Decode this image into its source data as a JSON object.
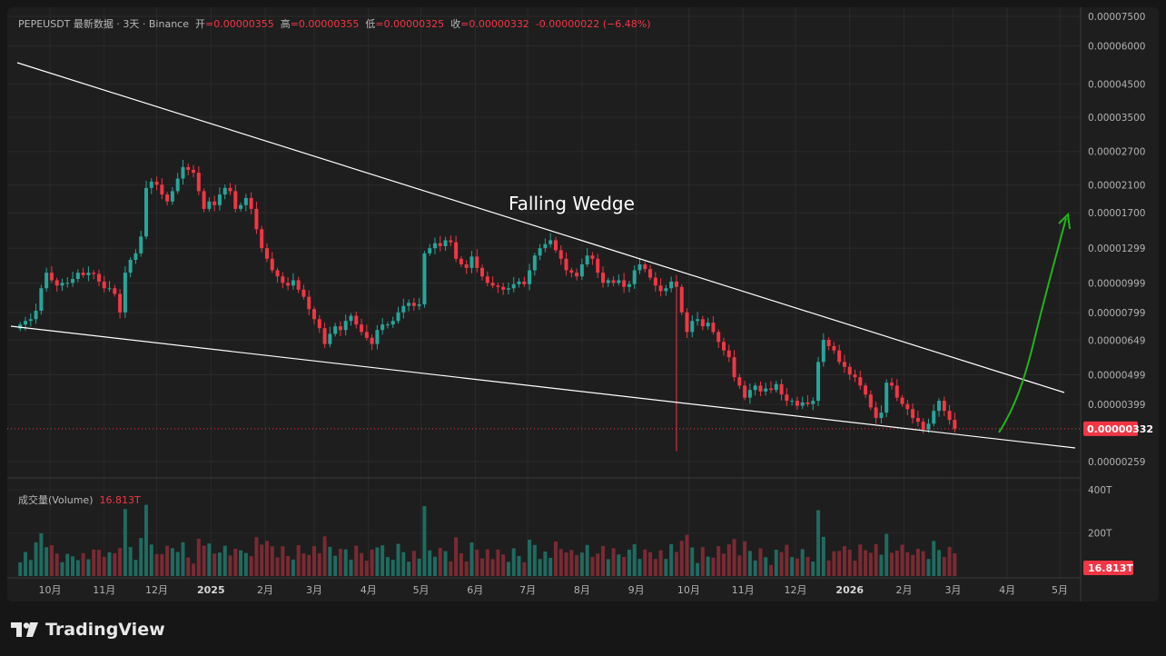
{
  "header": {
    "symbol": "PEPEUSDT",
    "chart_kind": "最新数据",
    "interval": "3天",
    "exchange": "Binance",
    "open_label": "开",
    "open_value": "=0.00000355",
    "high_label": "高",
    "high_value": "=0.00000355",
    "low_label": "低",
    "low_value": "=0.00000325",
    "close_label": "收",
    "close_value": "=0.00000332",
    "change": "-0.00000022 (−6.48%)"
  },
  "volume_legend": {
    "label": "成交量(Volume)",
    "value": "16.813T"
  },
  "annotation": "Falling Wedge",
  "branding": "TradingView",
  "colors": {
    "up": "#26a69a",
    "down": "#f23645",
    "up_volume": "#1f6b60",
    "down_volume": "#7a2a33",
    "projection": "#22b51a",
    "trendline": "#ffffff",
    "background": "#1e1e1e"
  },
  "chart_data": {
    "type": "candlestick",
    "symbol": "PEPEUSDT",
    "interval": "3D",
    "y_scale": "log",
    "grid": true,
    "price_axis_ticks": [
      "0.00007500",
      "0.00006000",
      "0.00004500",
      "0.00003500",
      "0.00002700",
      "0.00002100",
      "0.00001700",
      "0.00001299",
      "0.00000999",
      "0.00000799",
      "0.00000649",
      "0.00000499",
      "0.00000399",
      "0.00000259"
    ],
    "price_axis_tick_values": [
      7.5e-05,
      6e-05,
      4.5e-05,
      3.5e-05,
      2.7e-05,
      2.1e-05,
      1.7e-05,
      1.299e-05,
      9.99e-06,
      7.99e-06,
      6.49e-06,
      4.99e-06,
      3.99e-06,
      2.59e-06
    ],
    "last_price": "0.00000332",
    "last_price_value": 3.32e-06,
    "volume_ticks": [
      "400T",
      "200T"
    ],
    "volume_tick_values": [
      400,
      200
    ],
    "last_volume": "16.813T",
    "time_labels": [
      {
        "label": "10月",
        "date": "2024-10-01"
      },
      {
        "label": "11月",
        "date": "2024-11-01"
      },
      {
        "label": "12月",
        "date": "2024-12-01"
      },
      {
        "label": "2025",
        "date": "2025-01-01"
      },
      {
        "label": "2月",
        "date": "2025-02-01"
      },
      {
        "label": "3月",
        "date": "2025-03-01"
      },
      {
        "label": "4月",
        "date": "2025-04-01"
      },
      {
        "label": "5月",
        "date": "2025-05-01"
      },
      {
        "label": "6月",
        "date": "2025-06-01"
      },
      {
        "label": "7月",
        "date": "2025-07-01"
      },
      {
        "label": "8月",
        "date": "2025-08-01"
      },
      {
        "label": "9月",
        "date": "2025-09-01"
      },
      {
        "label": "10月",
        "date": "2025-10-01"
      },
      {
        "label": "11月",
        "date": "2025-11-01"
      },
      {
        "label": "12月",
        "date": "2025-12-01"
      },
      {
        "label": "2026",
        "date": "2026-01-01"
      },
      {
        "label": "2月",
        "date": "2026-02-01"
      },
      {
        "label": "3月",
        "date": "2026-03-01"
      },
      {
        "label": "4月",
        "date": "2026-04-01"
      },
      {
        "label": "5月",
        "date": "2026-05-01"
      }
    ],
    "candle_start_date": "2024-09-14",
    "candle_interval_days": 3,
    "series": [
      {
        "name": "PEPEUSDT",
        "closes": [
          7.3e-06,
          7.5e-06,
          7.6e-06,
          8.1e-06,
          9.6e-06,
          1.08e-05,
          1.02e-05,
          9.8e-06,
          1e-05,
          1e-05,
          1.03e-05,
          1.08e-05,
          1.06e-05,
          1.08e-05,
          1.07e-05,
          1.01e-05,
          9.6e-06,
          9.6e-06,
          9.2e-06,
          8e-06,
          1.08e-05,
          1.19e-05,
          1.25e-05,
          1.42e-05,
          2.05e-05,
          2.15e-05,
          2.1e-05,
          1.95e-05,
          1.85e-05,
          2e-05,
          2.2e-05,
          2.4e-05,
          2.35e-05,
          2.3e-05,
          2e-05,
          1.75e-05,
          1.85e-05,
          1.8e-05,
          1.95e-05,
          2.05e-05,
          2e-05,
          1.75e-05,
          1.8e-05,
          1.9e-05,
          1.75e-05,
          1.5e-05,
          1.3e-05,
          1.2e-05,
          1.1e-05,
          1.05e-05,
          1e-05,
          9.8e-06,
          1.02e-05,
          9.5e-06,
          9e-06,
          8.2e-06,
          7.6e-06,
          7.1e-06,
          6.3e-06,
          6.8e-06,
          7.2e-06,
          7e-06,
          7.5e-06,
          7.8e-06,
          7.3e-06,
          6.9e-06,
          6.6e-06,
          6.3e-06,
          7e-06,
          7.3e-06,
          7.3e-06,
          7.5e-06,
          8e-06,
          8.4e-06,
          8.6e-06,
          8.4e-06,
          8.5e-06,
          1.25e-05,
          1.3e-05,
          1.35e-05,
          1.32e-05,
          1.38e-05,
          1.36e-05,
          1.2e-05,
          1.15e-05,
          1.12e-05,
          1.22e-05,
          1.12e-05,
          1.05e-05,
          1e-05,
          9.8e-06,
          9.7e-06,
          9.5e-06,
          9.6e-06,
          9.9e-06,
          1.01e-05,
          9.9e-06,
          1.1e-05,
          1.23e-05,
          1.3e-05,
          1.34e-05,
          1.38e-05,
          1.28e-05,
          1.2e-05,
          1.1e-05,
          1.08e-05,
          1.05e-05,
          1.15e-05,
          1.23e-05,
          1.2e-05,
          1.08e-05,
          1e-05,
          1.02e-05,
          1e-05,
          1.02e-05,
          9.7e-06,
          9.9e-06,
          1.1e-05,
          1.15e-05,
          1.11e-05,
          1.04e-05,
          9.8e-06,
          9.4e-06,
          9.6e-06,
          1.01e-05,
          9.7e-06,
          8e-06,
          6.9e-06,
          7.5e-06,
          7.6e-06,
          7.2e-06,
          7.4e-06,
          6.9e-06,
          6.4e-06,
          6e-06,
          5.7e-06,
          4.9e-06,
          4.6e-06,
          4.2e-06,
          4.45e-06,
          4.6e-06,
          4.4e-06,
          4.5e-06,
          4.45e-06,
          4.65e-06,
          4.3e-06,
          4.1e-06,
          4.1e-06,
          3.95e-06,
          4.05e-06,
          4e-06,
          4.1e-06,
          5.5e-06,
          6.5e-06,
          6.2e-06,
          6e-06,
          5.5e-06,
          5.3e-06,
          5e-06,
          4.9e-06,
          4.6e-06,
          4.3e-06,
          3.9e-06,
          3.6e-06,
          3.75e-06,
          4.7e-06,
          4.6e-06,
          4.2e-06,
          4e-06,
          3.85e-06,
          3.6e-06,
          3.5e-06,
          3.3e-06,
          3.45e-06,
          3.8e-06,
          4.1e-06,
          3.8e-06,
          3.55e-06,
          3.32e-06
        ]
      }
    ],
    "annotations": [
      "Falling Wedge"
    ]
  }
}
